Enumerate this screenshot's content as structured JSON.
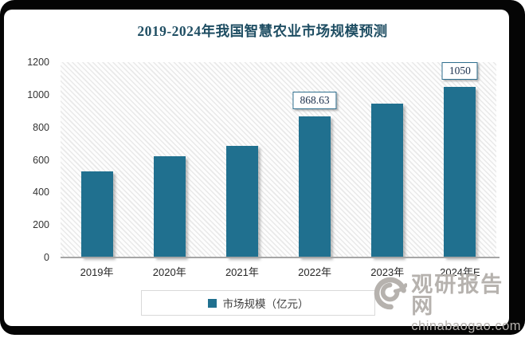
{
  "chart_data": {
    "type": "bar",
    "title": "2019-2024年我国智慧农业市场规模预测",
    "categories": [
      "2019年",
      "2020年",
      "2021年",
      "2022年",
      "2023年",
      "2024年E"
    ],
    "series": [
      {
        "name": "市场规模（亿元）",
        "values": [
          530,
          622,
          685,
          868.63,
          945,
          1050
        ]
      }
    ],
    "point_labels": [
      null,
      null,
      null,
      "868.63",
      null,
      "1050"
    ],
    "ylim": [
      0,
      1200
    ],
    "yticks": [
      0,
      200,
      400,
      600,
      800,
      1000,
      1200
    ],
    "bar_color": "#20708F",
    "grid": false,
    "legend_position": "bottom",
    "plot_background": "diagonal-hatch"
  },
  "legend": {
    "label": "市场规模（亿元）"
  },
  "watermark": {
    "site_name": "观研报告网",
    "domain": "chinabaogao.com"
  },
  "colors": {
    "bar": "#20708F",
    "title_text": "#1F4E63",
    "label_box_border": "#2E6E8E",
    "axis_line": "#a6a6a6",
    "watermark_gray": "#b6b2ae"
  }
}
